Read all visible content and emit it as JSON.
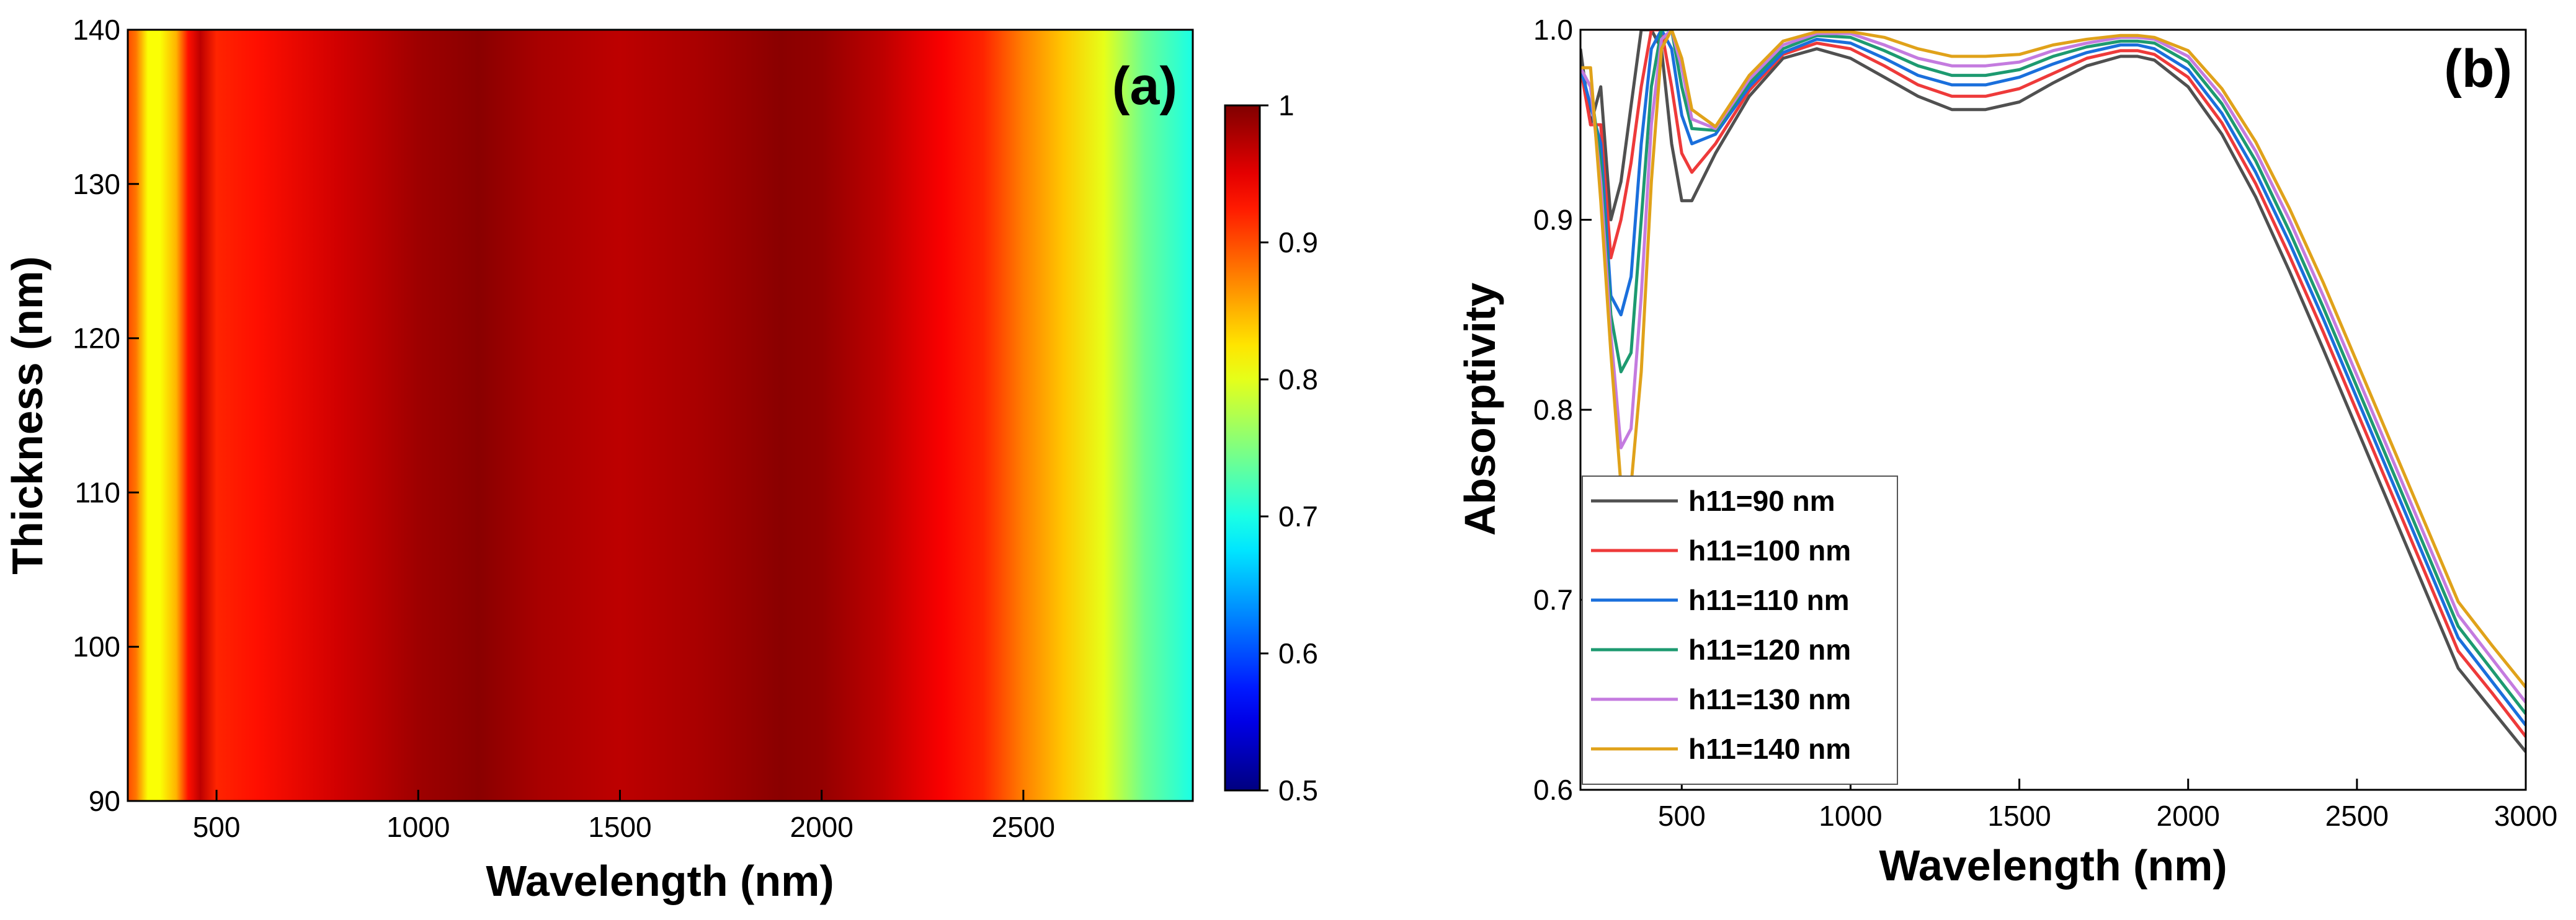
{
  "chart_data": [
    {
      "type": "heatmap",
      "panel_label": "(a)",
      "xlabel": "Wavelength (nm)",
      "ylabel": "Thickness (nm)",
      "xlim": [
        280,
        2920
      ],
      "ylim": [
        90,
        140
      ],
      "xticks": [
        500,
        1000,
        1500,
        2000,
        2500
      ],
      "xtick_labels": [
        "500",
        "1000",
        "1500",
        "2000",
        "2500"
      ],
      "yticks": [
        90,
        100,
        110,
        120,
        130,
        140
      ],
      "ytick_labels": [
        "90",
        "100",
        "110",
        "120",
        "130",
        "140"
      ],
      "colorbar": {
        "range": [
          0.5,
          1.0
        ],
        "ticks": [
          0.5,
          0.6,
          0.7,
          0.8,
          0.9,
          1.0
        ],
        "tick_labels": [
          "0.5",
          "0.6",
          "0.7",
          "0.8",
          "0.9",
          "1"
        ],
        "colormap": "jet"
      },
      "approx_absorptivity_vs_wavelength": {
        "wavelength": [
          280,
          300,
          330,
          360,
          400,
          430,
          460,
          500,
          600,
          800,
          1000,
          1150,
          1300,
          1500,
          1700,
          1900,
          2000,
          2150,
          2300,
          2400,
          2500,
          2600,
          2700,
          2800,
          2920
        ],
        "at_thickness_90": [
          0.9,
          0.88,
          0.82,
          0.84,
          0.88,
          0.96,
          0.97,
          0.92,
          0.93,
          0.96,
          0.985,
          0.995,
          0.98,
          0.97,
          0.98,
          0.995,
          0.99,
          0.97,
          0.94,
          0.92,
          0.87,
          0.83,
          0.79,
          0.72,
          0.68
        ],
        "at_thickness_140": [
          0.9,
          0.88,
          0.8,
          0.78,
          0.82,
          0.9,
          0.97,
          0.92,
          0.93,
          0.96,
          0.985,
          0.995,
          0.98,
          0.97,
          0.98,
          0.995,
          0.99,
          0.97,
          0.94,
          0.92,
          0.88,
          0.85,
          0.81,
          0.76,
          0.72
        ]
      }
    },
    {
      "type": "line",
      "panel_label": "(b)",
      "xlabel": "Wavelength (nm)",
      "ylabel": "Absorptivity",
      "xlim": [
        200,
        3000
      ],
      "ylim": [
        0.6,
        1.0
      ],
      "xticks": [
        500,
        1000,
        1500,
        2000,
        2500,
        3000
      ],
      "xtick_labels": [
        "500",
        "1000",
        "1500",
        "2000",
        "2500",
        "3000"
      ],
      "yticks": [
        0.6,
        0.7,
        0.8,
        0.9,
        1.0
      ],
      "ytick_labels": [
        "0.6",
        "0.7",
        "0.8",
        "0.9",
        "1.0"
      ],
      "legend_position": "bottom-left",
      "series": [
        {
          "name": "h11=90 nm",
          "color": "#505050",
          "x": [
            200,
            230,
            260,
            290,
            320,
            350,
            380,
            410,
            440,
            470,
            500,
            530,
            600,
            700,
            800,
            900,
            1000,
            1100,
            1200,
            1300,
            1400,
            1500,
            1600,
            1700,
            1800,
            1850,
            1900,
            2000,
            2100,
            2200,
            2300,
            2400,
            2500,
            2600,
            2700,
            2800,
            2900,
            3000
          ],
          "y": [
            0.99,
            0.95,
            0.97,
            0.9,
            0.92,
            0.96,
            1.0,
            1.0,
            0.99,
            0.94,
            0.91,
            0.91,
            0.935,
            0.965,
            0.985,
            0.99,
            0.985,
            0.975,
            0.965,
            0.958,
            0.958,
            0.962,
            0.972,
            0.981,
            0.986,
            0.986,
            0.984,
            0.97,
            0.945,
            0.912,
            0.873,
            0.832,
            0.79,
            0.748,
            0.706,
            0.664,
            0.642,
            0.62
          ]
        },
        {
          "name": "h11=100 nm",
          "color": "#ee3a3a",
          "x": [
            200,
            230,
            260,
            290,
            320,
            350,
            380,
            410,
            440,
            470,
            500,
            530,
            600,
            700,
            800,
            900,
            1000,
            1100,
            1200,
            1300,
            1400,
            1500,
            1600,
            1700,
            1800,
            1850,
            1900,
            2000,
            2100,
            2200,
            2300,
            2400,
            2500,
            2600,
            2700,
            2800,
            2900,
            3000
          ],
          "y": [
            0.98,
            0.95,
            0.95,
            0.88,
            0.9,
            0.93,
            0.97,
            1.0,
            1.0,
            0.97,
            0.935,
            0.925,
            0.94,
            0.968,
            0.987,
            0.993,
            0.99,
            0.981,
            0.971,
            0.965,
            0.965,
            0.969,
            0.977,
            0.985,
            0.989,
            0.989,
            0.987,
            0.975,
            0.951,
            0.919,
            0.881,
            0.841,
            0.799,
            0.757,
            0.715,
            0.673,
            0.651,
            0.628
          ]
        },
        {
          "name": "h11=110 nm",
          "color": "#1a6fdc",
          "x": [
            200,
            230,
            260,
            290,
            320,
            350,
            380,
            410,
            440,
            470,
            500,
            530,
            600,
            700,
            800,
            900,
            1000,
            1100,
            1200,
            1300,
            1400,
            1500,
            1600,
            1700,
            1800,
            1850,
            1900,
            2000,
            2100,
            2200,
            2300,
            2400,
            2500,
            2600,
            2700,
            2800,
            2900,
            3000
          ],
          "y": [
            0.98,
            0.96,
            0.94,
            0.86,
            0.85,
            0.87,
            0.94,
            0.99,
            1.0,
            0.99,
            0.955,
            0.94,
            0.945,
            0.97,
            0.988,
            0.995,
            0.993,
            0.985,
            0.976,
            0.971,
            0.971,
            0.975,
            0.982,
            0.988,
            0.992,
            0.992,
            0.99,
            0.979,
            0.956,
            0.925,
            0.888,
            0.848,
            0.806,
            0.764,
            0.722,
            0.68,
            0.657,
            0.634
          ]
        },
        {
          "name": "h11=120 nm",
          "color": "#1d9a70",
          "x": [
            200,
            230,
            260,
            290,
            320,
            350,
            380,
            410,
            440,
            470,
            500,
            530,
            600,
            700,
            800,
            900,
            1000,
            1100,
            1200,
            1300,
            1400,
            1500,
            1600,
            1700,
            1800,
            1850,
            1900,
            2000,
            2100,
            2200,
            2300,
            2400,
            2500,
            2600,
            2700,
            2800,
            2900,
            3000
          ],
          "y": [
            0.98,
            0.97,
            0.93,
            0.85,
            0.82,
            0.83,
            0.9,
            0.97,
            1.0,
            1.0,
            0.97,
            0.948,
            0.947,
            0.972,
            0.99,
            0.997,
            0.996,
            0.989,
            0.981,
            0.976,
            0.976,
            0.979,
            0.986,
            0.991,
            0.994,
            0.994,
            0.993,
            0.983,
            0.961,
            0.931,
            0.894,
            0.854,
            0.812,
            0.77,
            0.728,
            0.686,
            0.663,
            0.64
          ]
        },
        {
          "name": "h11=130 nm",
          "color": "#c47bdf",
          "x": [
            200,
            230,
            260,
            290,
            320,
            350,
            380,
            410,
            440,
            470,
            500,
            530,
            600,
            700,
            800,
            900,
            1000,
            1100,
            1200,
            1300,
            1400,
            1500,
            1600,
            1700,
            1800,
            1850,
            1900,
            2000,
            2100,
            2200,
            2300,
            2400,
            2500,
            2600,
            2700,
            2800,
            2900,
            3000
          ],
          "y": [
            0.98,
            0.97,
            0.92,
            0.84,
            0.78,
            0.79,
            0.86,
            0.95,
            0.995,
            1.0,
            0.98,
            0.953,
            0.948,
            0.974,
            0.992,
            0.998,
            0.998,
            0.992,
            0.985,
            0.981,
            0.981,
            0.983,
            0.989,
            0.993,
            0.996,
            0.996,
            0.995,
            0.986,
            0.965,
            0.936,
            0.9,
            0.86,
            0.818,
            0.776,
            0.734,
            0.692,
            0.669,
            0.646
          ]
        },
        {
          "name": "h11=140 nm",
          "color": "#e0a21a",
          "x": [
            200,
            230,
            260,
            290,
            320,
            350,
            380,
            410,
            440,
            470,
            500,
            530,
            600,
            700,
            800,
            900,
            1000,
            1100,
            1200,
            1300,
            1400,
            1500,
            1600,
            1700,
            1800,
            1850,
            1900,
            2000,
            2100,
            2200,
            2300,
            2400,
            2500,
            2600,
            2700,
            2800,
            2900,
            3000
          ],
          "y": [
            0.98,
            0.98,
            0.91,
            0.83,
            0.76,
            0.76,
            0.82,
            0.92,
            0.99,
            1.0,
            0.985,
            0.958,
            0.949,
            0.976,
            0.994,
            0.999,
            0.999,
            0.996,
            0.99,
            0.986,
            0.986,
            0.987,
            0.992,
            0.995,
            0.997,
            0.997,
            0.996,
            0.989,
            0.969,
            0.941,
            0.906,
            0.867,
            0.825,
            0.783,
            0.741,
            0.699,
            0.676,
            0.654
          ]
        }
      ]
    }
  ]
}
